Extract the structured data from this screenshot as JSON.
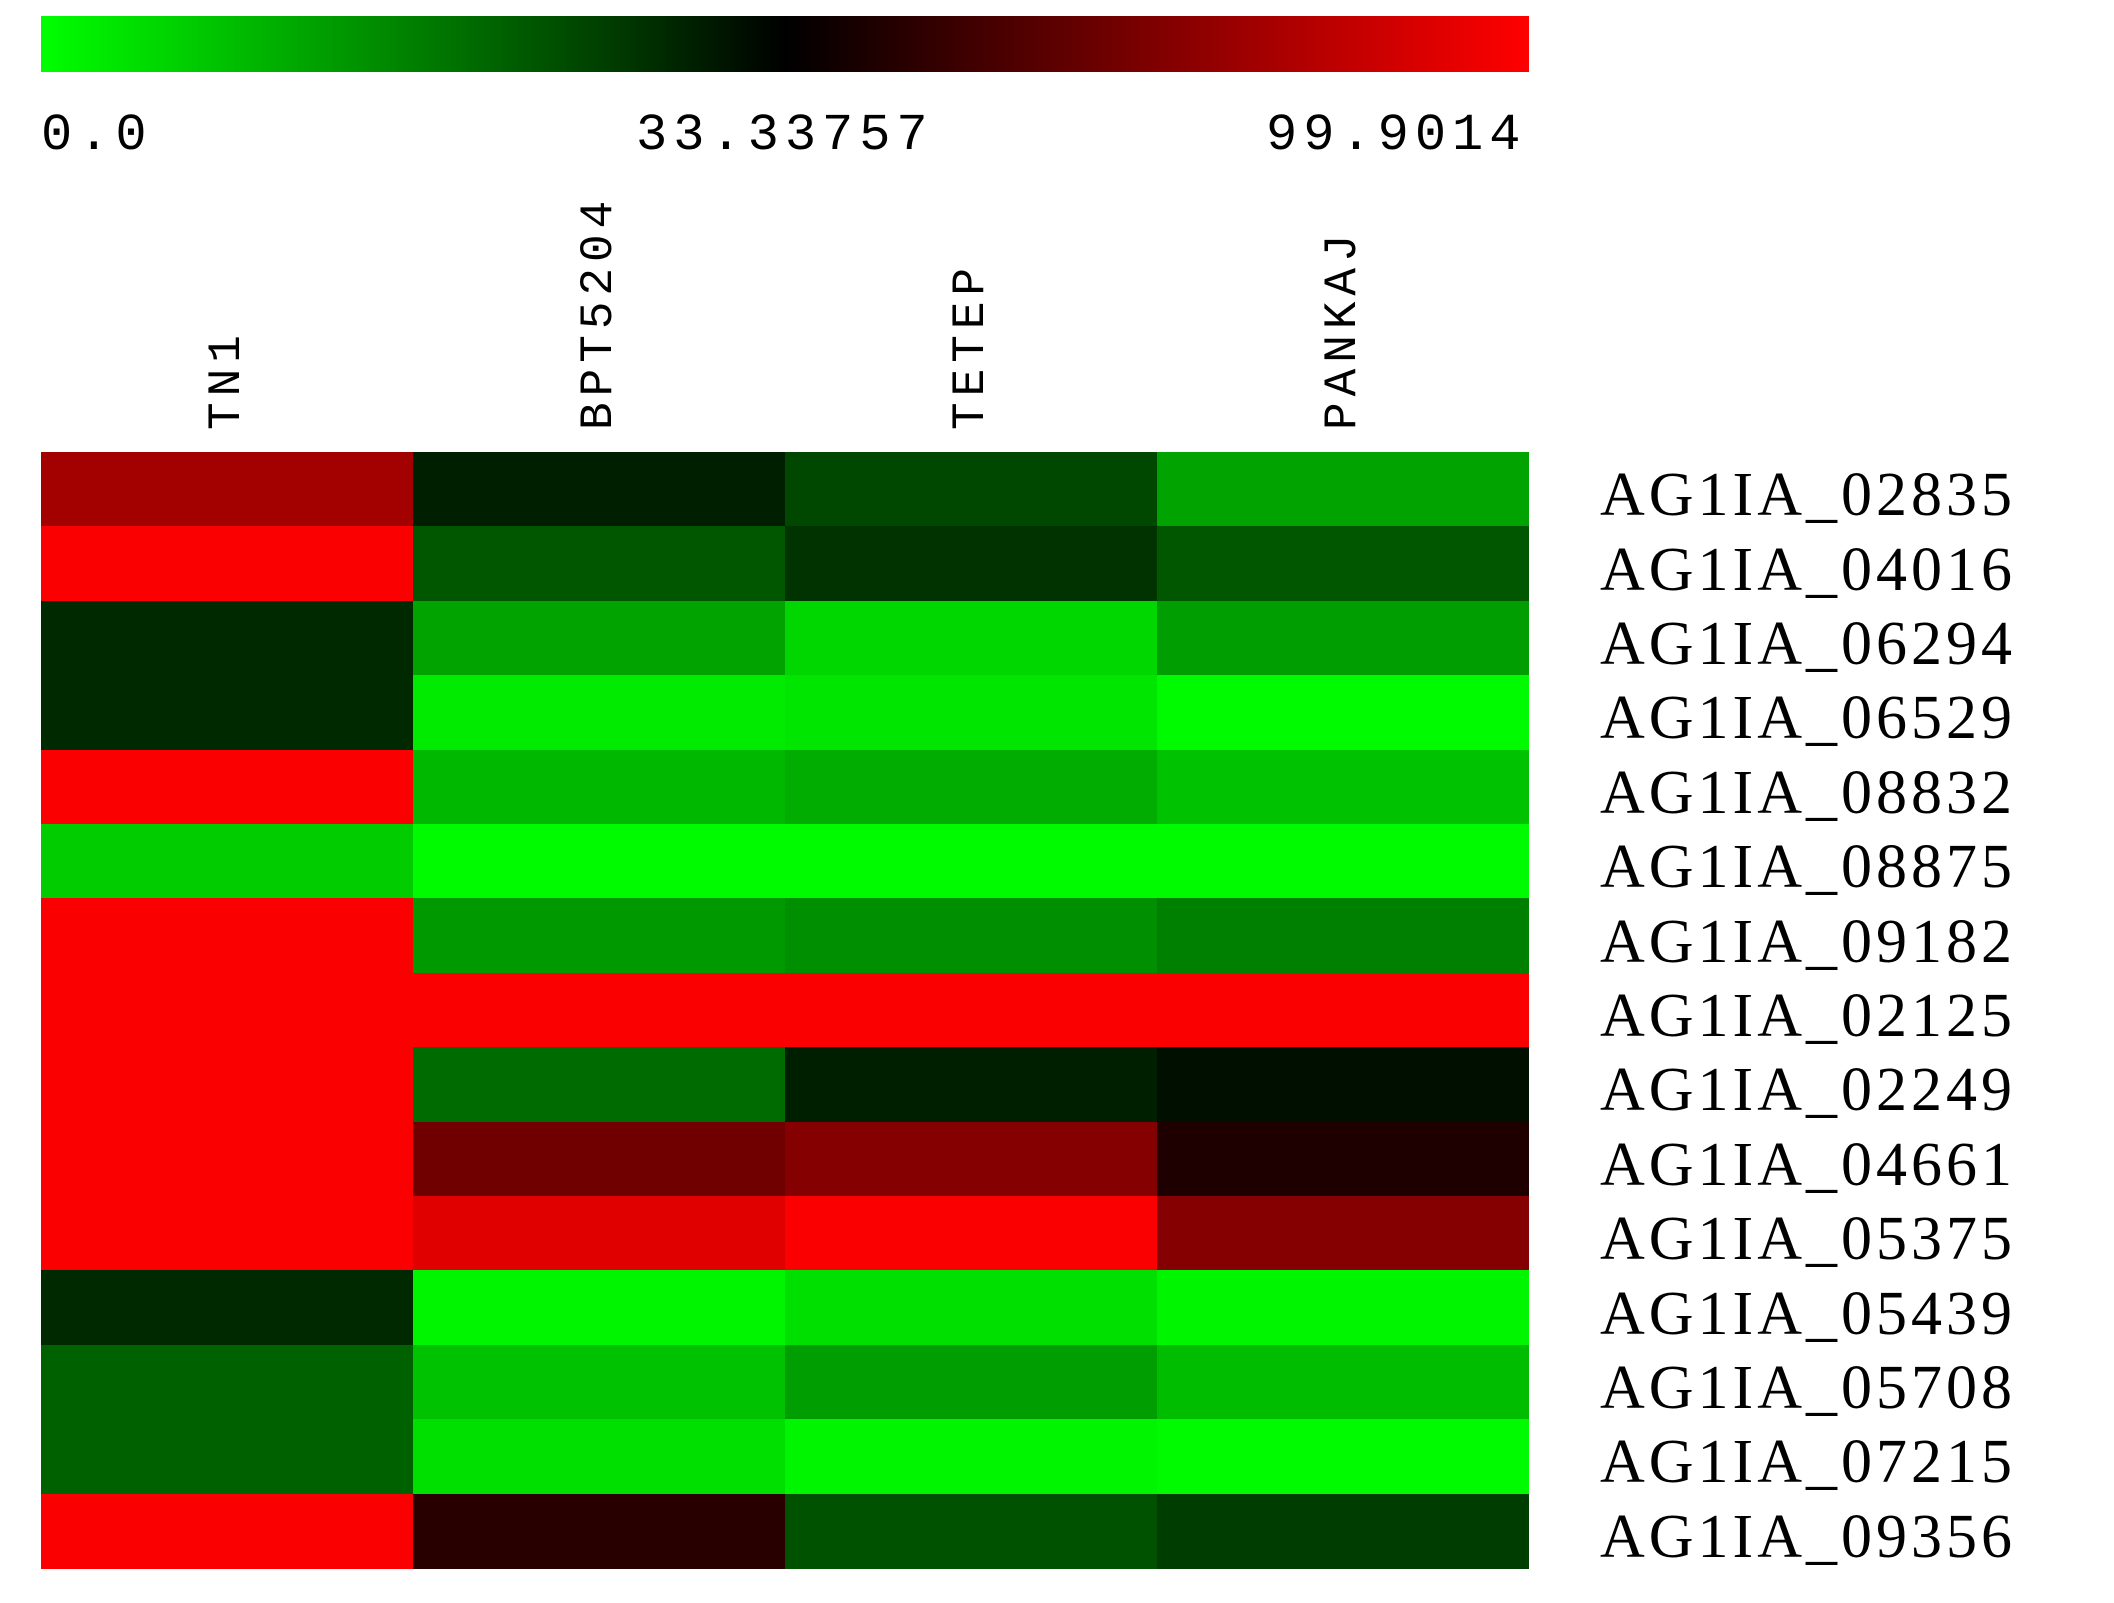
{
  "chart_data": {
    "type": "heatmap",
    "color_scale": {
      "min_label": "0.0",
      "mid_label": "33.33757",
      "max_label": "99.9014",
      "min_color": "#00ff00",
      "mid_color": "#000000",
      "max_color": "#ff0000"
    },
    "columns": [
      "TN1",
      "BPT5204",
      "TETEP",
      "PANKAJ"
    ],
    "rows": [
      "AG1IA_02835",
      "AG1IA_04016",
      "AG1IA_06294",
      "AG1IA_06529",
      "AG1IA_08832",
      "AG1IA_08875",
      "AG1IA_09182",
      "AG1IA_02125",
      "AG1IA_02249",
      "AG1IA_04661",
      "AG1IA_05375",
      "AG1IA_05439",
      "AG1IA_05708",
      "AG1IA_07215",
      "AG1IA_09356"
    ],
    "values": [
      [
        82,
        44,
        36,
        18
      ],
      [
        99,
        33,
        40,
        33
      ],
      [
        42,
        18,
        8,
        19
      ],
      [
        42,
        4,
        5,
        1
      ],
      [
        99,
        14,
        16,
        12
      ],
      [
        10,
        1,
        1,
        1
      ],
      [
        99,
        20,
        22,
        25
      ],
      [
        99,
        99,
        99,
        99
      ],
      [
        99,
        29,
        44,
        47
      ],
      [
        99,
        72,
        76,
        56
      ],
      [
        99,
        94,
        99,
        76
      ],
      [
        42,
        2,
        6,
        2
      ],
      [
        31,
        12,
        19,
        13
      ],
      [
        31,
        6,
        2,
        1
      ],
      [
        99,
        58,
        34,
        38
      ]
    ]
  }
}
